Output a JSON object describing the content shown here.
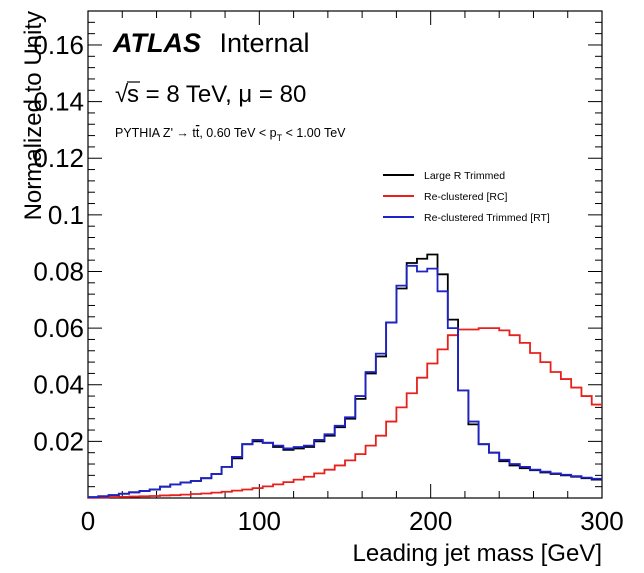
{
  "chart_data": {
    "type": "line",
    "style": "step-histogram",
    "title": "",
    "xlabel": "Leading jet mass [GeV]",
    "ylabel": "Normalized to Unity",
    "xlim": [
      0,
      300
    ],
    "ylim": [
      0,
      0.172
    ],
    "x_ticks": [
      "0",
      "100",
      "200",
      "300"
    ],
    "y_ticks": [
      "0.02",
      "0.04",
      "0.06",
      "0.08",
      "0.1",
      "0.12",
      "0.14",
      "0.16"
    ],
    "annotations": {
      "experiment": "ATLAS",
      "status": "Internal",
      "sqrt_symbol": "√",
      "energy": "s = 8 TeV, μ = 80",
      "process_prefix": "PYTHIA Z' → t",
      "process_tbar": "t",
      "process_mid": ", 0.60 TeV < p",
      "process_sub": "T",
      "process_suffix": " < 1.00 TeV"
    },
    "legend_position": "top-right",
    "bin_width": 6,
    "bin_edges_start": 0,
    "series": [
      {
        "name": "Large R Trimmed",
        "color": "#000000",
        "values": [
          0.0003,
          0.0006,
          0.001,
          0.0015,
          0.002,
          0.0025,
          0.003,
          0.004,
          0.0048,
          0.0055,
          0.006,
          0.007,
          0.0085,
          0.011,
          0.014,
          0.019,
          0.02,
          0.0195,
          0.018,
          0.017,
          0.0175,
          0.018,
          0.02,
          0.022,
          0.025,
          0.028,
          0.035,
          0.044,
          0.05,
          0.062,
          0.074,
          0.083,
          0.0845,
          0.086,
          0.079,
          0.063,
          0.038,
          0.026,
          0.019,
          0.016,
          0.013,
          0.0115,
          0.0105,
          0.0098,
          0.009,
          0.0085,
          0.008,
          0.0075,
          0.007,
          0.0065
        ]
      },
      {
        "name": "Re-clustered [RC]",
        "color": "#e8201c",
        "values": [
          0.0001,
          0.0002,
          0.0003,
          0.0004,
          0.0005,
          0.0006,
          0.0007,
          0.0009,
          0.001,
          0.0012,
          0.0014,
          0.0016,
          0.0019,
          0.0022,
          0.0026,
          0.003,
          0.0035,
          0.0041,
          0.0048,
          0.0056,
          0.0065,
          0.0075,
          0.0087,
          0.01,
          0.0115,
          0.0133,
          0.0155,
          0.0185,
          0.022,
          0.027,
          0.032,
          0.037,
          0.0425,
          0.0475,
          0.0525,
          0.0575,
          0.0595,
          0.0595,
          0.06,
          0.06,
          0.0592,
          0.0575,
          0.0548,
          0.0512,
          0.048,
          0.0445,
          0.042,
          0.039,
          0.036,
          0.033
        ]
      },
      {
        "name": "Re-clustered Trimmed [RT]",
        "color": "#1e22c8",
        "values": [
          0.0003,
          0.0006,
          0.001,
          0.0015,
          0.002,
          0.0025,
          0.003,
          0.004,
          0.0048,
          0.0055,
          0.006,
          0.007,
          0.0085,
          0.011,
          0.0145,
          0.019,
          0.0205,
          0.0195,
          0.0185,
          0.0175,
          0.018,
          0.0185,
          0.0205,
          0.0225,
          0.0255,
          0.0285,
          0.036,
          0.0445,
          0.051,
          0.062,
          0.075,
          0.082,
          0.08,
          0.081,
          0.073,
          0.06,
          0.038,
          0.027,
          0.019,
          0.016,
          0.0135,
          0.012,
          0.011,
          0.01,
          0.0093,
          0.0087,
          0.0082,
          0.0077,
          0.0072,
          0.0068
        ]
      }
    ]
  }
}
